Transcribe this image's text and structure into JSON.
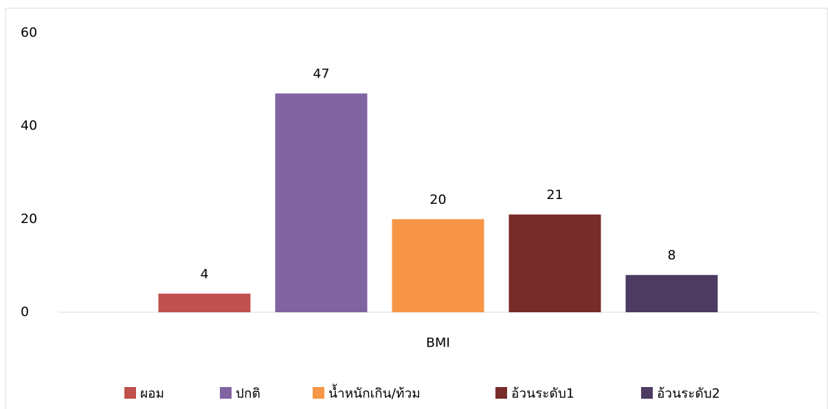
{
  "chart_data": {
    "type": "bar",
    "categories": [
      "BMI"
    ],
    "series": [
      {
        "name": "ผอม",
        "color": "#c0504d",
        "values": [
          4
        ]
      },
      {
        "name": "ปกติ",
        "color": "#8064a2",
        "values": [
          47
        ]
      },
      {
        "name": "น้ำหนักเกิน/ท้วม",
        "color": "#f79646",
        "values": [
          20
        ]
      },
      {
        "name": "อ้วนระดับ1",
        "color": "#772c2a",
        "values": [
          21
        ]
      },
      {
        "name": "อ้วนระดับ2",
        "color": "#4d3b62",
        "values": [
          8
        ]
      }
    ],
    "ylim": [
      0,
      60
    ],
    "yticks": [
      0,
      20,
      40,
      60
    ],
    "grid": false,
    "legend": "bottom"
  }
}
